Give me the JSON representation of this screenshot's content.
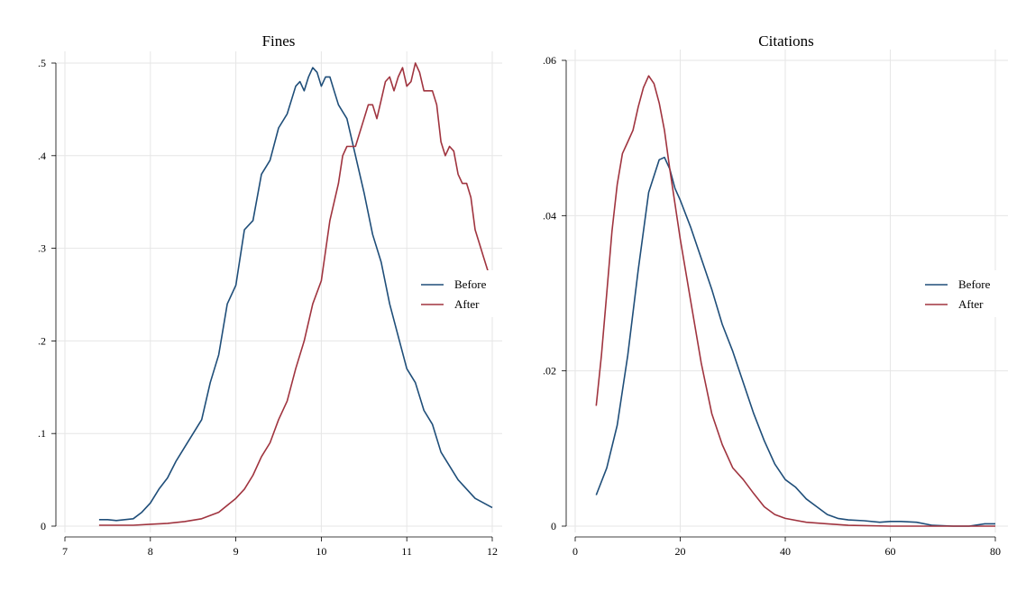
{
  "chart_data": [
    {
      "type": "line",
      "title": "Fines",
      "xlabel": "",
      "ylabel": "",
      "xlim": [
        7,
        12
      ],
      "ylim": [
        0,
        0.5
      ],
      "x_ticks": [
        7,
        8,
        9,
        10,
        11,
        12
      ],
      "x_tick_labels": [
        "7",
        "8",
        "9",
        "10",
        "11",
        "12"
      ],
      "y_ticks": [
        0,
        0.1,
        0.2,
        0.3,
        0.4,
        0.5
      ],
      "y_tick_labels": [
        "0",
        ".1",
        ".2",
        ".3",
        ".4",
        ".5"
      ],
      "grid": true,
      "legend_position": "right",
      "series": [
        {
          "name": "Before",
          "color": "#1f4e79",
          "x": [
            7.4,
            7.5,
            7.6,
            7.7,
            7.8,
            7.9,
            8.0,
            8.1,
            8.2,
            8.3,
            8.4,
            8.5,
            8.6,
            8.7,
            8.8,
            8.9,
            9.0,
            9.1,
            9.2,
            9.3,
            9.4,
            9.5,
            9.6,
            9.7,
            9.75,
            9.8,
            9.85,
            9.9,
            9.95,
            10.0,
            10.05,
            10.1,
            10.15,
            10.2,
            10.3,
            10.4,
            10.5,
            10.6,
            10.7,
            10.8,
            10.9,
            11.0,
            11.1,
            11.2,
            11.3,
            11.4,
            11.5,
            11.6,
            11.7,
            11.8,
            11.9,
            12.0
          ],
          "y": [
            0.007,
            0.007,
            0.006,
            0.007,
            0.008,
            0.015,
            0.025,
            0.04,
            0.052,
            0.07,
            0.085,
            0.1,
            0.115,
            0.155,
            0.185,
            0.24,
            0.26,
            0.32,
            0.33,
            0.38,
            0.395,
            0.43,
            0.445,
            0.475,
            0.48,
            0.47,
            0.485,
            0.495,
            0.49,
            0.475,
            0.485,
            0.485,
            0.47,
            0.455,
            0.44,
            0.4,
            0.36,
            0.315,
            0.285,
            0.24,
            0.205,
            0.17,
            0.155,
            0.125,
            0.11,
            0.08,
            0.065,
            0.05,
            0.04,
            0.03,
            0.025,
            0.02
          ]
        },
        {
          "name": "After",
          "color": "#a0343f",
          "x": [
            7.4,
            7.6,
            7.8,
            8.0,
            8.2,
            8.4,
            8.6,
            8.8,
            9.0,
            9.1,
            9.2,
            9.3,
            9.4,
            9.5,
            9.6,
            9.7,
            9.8,
            9.9,
            10.0,
            10.1,
            10.2,
            10.25,
            10.3,
            10.4,
            10.5,
            10.55,
            10.6,
            10.65,
            10.7,
            10.75,
            10.8,
            10.85,
            10.9,
            10.95,
            11.0,
            11.05,
            11.1,
            11.15,
            11.2,
            11.3,
            11.35,
            11.4,
            11.45,
            11.5,
            11.55,
            11.6,
            11.65,
            11.7,
            11.75,
            11.8,
            11.85,
            11.9,
            11.95
          ],
          "y": [
            0.001,
            0.001,
            0.001,
            0.002,
            0.003,
            0.005,
            0.008,
            0.015,
            0.03,
            0.04,
            0.055,
            0.075,
            0.09,
            0.115,
            0.135,
            0.17,
            0.2,
            0.24,
            0.265,
            0.33,
            0.37,
            0.4,
            0.41,
            0.41,
            0.44,
            0.455,
            0.455,
            0.44,
            0.46,
            0.48,
            0.485,
            0.47,
            0.485,
            0.495,
            0.475,
            0.48,
            0.5,
            0.49,
            0.47,
            0.47,
            0.455,
            0.415,
            0.4,
            0.41,
            0.405,
            0.38,
            0.37,
            0.37,
            0.355,
            0.32,
            0.305,
            0.29,
            0.275
          ]
        }
      ]
    },
    {
      "type": "line",
      "title": "Citations",
      "xlabel": "",
      "ylabel": "",
      "xlim": [
        0,
        80
      ],
      "ylim": [
        0,
        0.06
      ],
      "x_ticks": [
        0,
        20,
        40,
        60,
        80
      ],
      "x_tick_labels": [
        "0",
        "20",
        "40",
        "60",
        "80"
      ],
      "y_ticks": [
        0,
        0.02,
        0.04,
        0.06
      ],
      "y_tick_labels": [
        "0",
        ".02",
        ".04",
        ".06"
      ],
      "grid": true,
      "legend_position": "right",
      "series": [
        {
          "name": "Before",
          "color": "#1f4e79",
          "x": [
            4,
            6,
            8,
            10,
            12,
            14,
            16,
            17,
            18,
            19,
            20,
            22,
            24,
            26,
            28,
            30,
            32,
            34,
            36,
            38,
            40,
            42,
            44,
            46,
            48,
            50,
            52,
            55,
            58,
            60,
            62,
            65,
            68,
            72,
            75,
            78,
            80
          ],
          "y": [
            0.004,
            0.0075,
            0.013,
            0.022,
            0.033,
            0.043,
            0.0472,
            0.0475,
            0.046,
            0.0435,
            0.042,
            0.0385,
            0.0345,
            0.0305,
            0.026,
            0.0225,
            0.0185,
            0.0145,
            0.011,
            0.008,
            0.006,
            0.005,
            0.0035,
            0.0025,
            0.0015,
            0.001,
            0.0008,
            0.0007,
            0.0005,
            0.0006,
            0.0006,
            0.0005,
            0.0001,
            0.0,
            0.0,
            0.0003,
            0.0003
          ]
        },
        {
          "name": "After",
          "color": "#a0343f",
          "x": [
            4,
            5,
            6,
            7,
            8,
            9,
            10,
            11,
            12,
            13,
            14,
            15,
            16,
            17,
            18,
            19,
            20,
            22,
            24,
            26,
            28,
            30,
            32,
            34,
            36,
            38,
            40,
            44,
            48,
            52,
            60,
            70,
            80
          ],
          "y": [
            0.0155,
            0.022,
            0.03,
            0.038,
            0.044,
            0.048,
            0.0495,
            0.051,
            0.054,
            0.0565,
            0.058,
            0.057,
            0.0545,
            0.051,
            0.046,
            0.0415,
            0.037,
            0.029,
            0.021,
            0.0145,
            0.0105,
            0.0075,
            0.006,
            0.0042,
            0.0025,
            0.0015,
            0.001,
            0.0005,
            0.0003,
            0.0001,
            0.0,
            0.0,
            0.0
          ]
        }
      ]
    }
  ]
}
